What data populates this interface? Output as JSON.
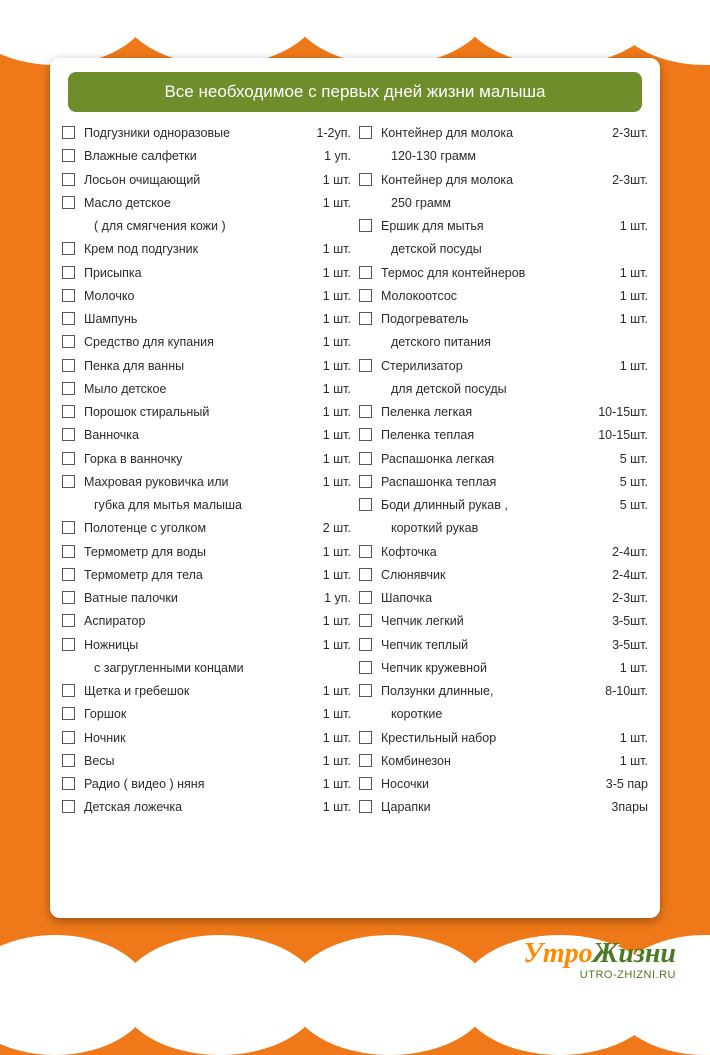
{
  "header": {
    "title": "Все необходимое с первых дней жизни малыша"
  },
  "colors": {
    "page_bg": "#ef7919",
    "header_bg": "#6f8e2b",
    "text": "#2b2b2b",
    "card_bg": "#ffffff",
    "checkbox_border": "#555555"
  },
  "logo": {
    "word1": "Утро",
    "word2": "Жизни",
    "sub": "UTRO-ZHIZNI.RU"
  },
  "left": [
    {
      "label": "Подгузники одноразовые",
      "qty": "1-2уп."
    },
    {
      "label": "Влажные салфетки",
      "qty": "1 уп."
    },
    {
      "label": "Лосьон очищающий",
      "qty": "1 шт."
    },
    {
      "label": "Масло детское",
      "qty": "1 шт."
    },
    {
      "label": "( для смягчения кожи )",
      "qty": "",
      "sub": true
    },
    {
      "label": "Крем под подгузник",
      "qty": "1 шт."
    },
    {
      "label": "Присыпка",
      "qty": "1 шт."
    },
    {
      "label": "Молочко",
      "qty": "1 шт."
    },
    {
      "label": "Шампунь",
      "qty": "1 шт."
    },
    {
      "label": "Средство для купания",
      "qty": "1 шт."
    },
    {
      "label": "Пенка для ванны",
      "qty": "1 шт."
    },
    {
      "label": "Мыло детское",
      "qty": "1 шт."
    },
    {
      "label": "Порошок стиральный",
      "qty": "1 шт."
    },
    {
      "label": "Ванночка",
      "qty": "1 шт."
    },
    {
      "label": "Горка в ванночку",
      "qty": "1 шт."
    },
    {
      "label": "Махровая руковичка или",
      "qty": "1 шт."
    },
    {
      "label": "губка для мытья малыша",
      "qty": "",
      "sub": true
    },
    {
      "label": "Полотенце с уголком",
      "qty": "2 шт."
    },
    {
      "label": "Термометр для воды",
      "qty": "1 шт."
    },
    {
      "label": "Термометр для тела",
      "qty": "1 шт."
    },
    {
      "label": "Ватные палочки",
      "qty": "1 уп."
    },
    {
      "label": "Аспиратор",
      "qty": "1 шт."
    },
    {
      "label": "Ножницы",
      "qty": "1 шт."
    },
    {
      "label": "с загругленными концами",
      "qty": "",
      "sub": true
    },
    {
      "label": "Щетка и гребешок",
      "qty": "1 шт."
    },
    {
      "label": "Горшок",
      "qty": "1 шт."
    },
    {
      "label": "Ночник",
      "qty": "1 шт."
    },
    {
      "label": "Весы",
      "qty": "1 шт."
    },
    {
      "label": "Радио ( видео ) няня",
      "qty": "1 шт."
    },
    {
      "label": "Детская  ложечка",
      "qty": "1 шт."
    }
  ],
  "right": [
    {
      "label": "Контейнер для молока",
      "qty": "2-3шт."
    },
    {
      "label": "120-130 грамм",
      "qty": "",
      "sub": true
    },
    {
      "label": "Контейнер для молока",
      "qty": "2-3шт."
    },
    {
      "label": "250 грамм",
      "qty": "",
      "sub": true
    },
    {
      "label": "Ершик для мытья",
      "qty": "1 шт."
    },
    {
      "label": "детской посуды",
      "qty": "",
      "sub": true
    },
    {
      "label": "Термос для контейнеров",
      "qty": "1 шт."
    },
    {
      "label": "Молокоотсос",
      "qty": "1 шт."
    },
    {
      "label": "Подогреватель",
      "qty": "1 шт."
    },
    {
      "label": "детского питания",
      "qty": "",
      "sub": true
    },
    {
      "label": "Стерилизатор",
      "qty": "1 шт."
    },
    {
      "label": "для детской посуды",
      "qty": "",
      "sub": true
    },
    {
      "label": "Пеленка легкая",
      "qty": "10-15шт."
    },
    {
      "label": "Пеленка теплая",
      "qty": "10-15шт."
    },
    {
      "label": "Распашонка легкая",
      "qty": "5 шт."
    },
    {
      "label": "Распашонка теплая",
      "qty": "5 шт."
    },
    {
      "label": "Боди длинный рукав ,",
      "qty": "5 шт."
    },
    {
      "label": "короткий рукав",
      "qty": "",
      "sub": true
    },
    {
      "label": "Кофточка",
      "qty": "2-4шт."
    },
    {
      "label": "Слюнявчик",
      "qty": "2-4шт."
    },
    {
      "label": "Шапочка",
      "qty": "2-3шт."
    },
    {
      "label": "Чепчик легкий",
      "qty": "3-5шт."
    },
    {
      "label": "Чепчик теплый",
      "qty": "3-5шт."
    },
    {
      "label": "Чепчик кружевной",
      "qty": "1 шт."
    },
    {
      "label": "Ползунки длинные,",
      "qty": "8-10шт."
    },
    {
      "label": "короткие",
      "qty": "",
      "sub": true
    },
    {
      "label": "Крестильный набор",
      "qty": "1 шт."
    },
    {
      "label": "Комбинезон",
      "qty": "1 шт."
    },
    {
      "label": "Носочки",
      "qty": "3-5 пар"
    },
    {
      "label": "Царапки",
      "qty": "3пары"
    }
  ]
}
